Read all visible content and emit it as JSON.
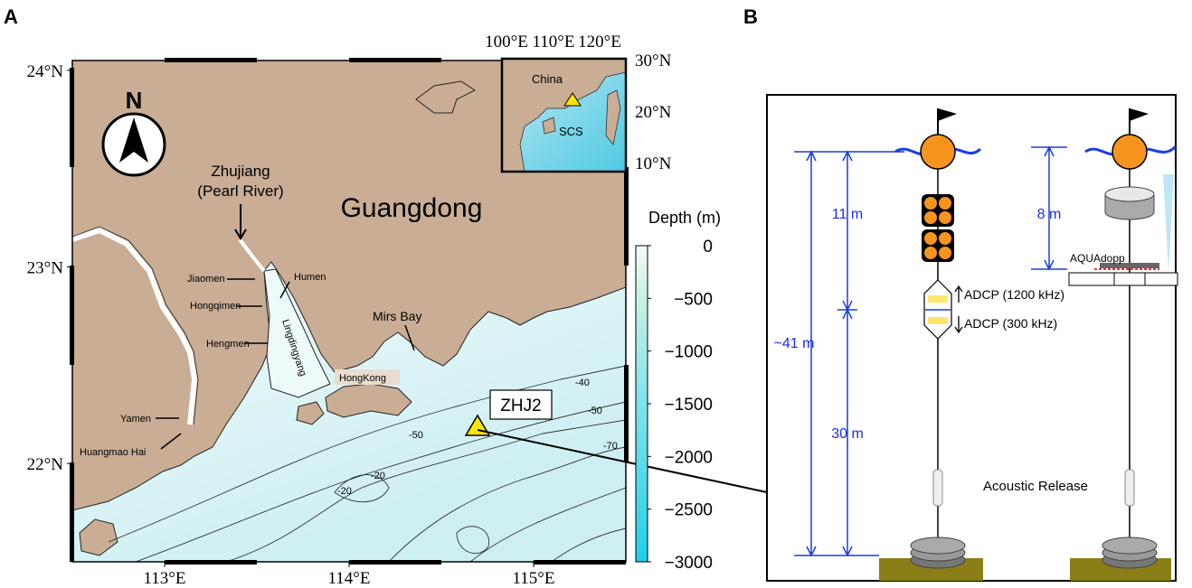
{
  "panels": {
    "a": "A",
    "b": "B"
  },
  "map": {
    "xlim": [
      112.5,
      115.5
    ],
    "ylim": [
      21.5,
      24.05
    ],
    "xticks": [
      {
        "value": 113,
        "label": "113°E"
      },
      {
        "value": 114,
        "label": "114°E"
      },
      {
        "value": 115,
        "label": "115°E"
      }
    ],
    "yticks": [
      {
        "value": 22,
        "label": "22°N"
      },
      {
        "value": 23,
        "label": "23°N"
      },
      {
        "value": 24,
        "label": "24°N"
      }
    ],
    "north": "N",
    "region": "Guangdong",
    "river": [
      "Zhujiang",
      "(Pearl River)"
    ],
    "places": [
      "Jiaomen",
      "Humen",
      "Hongqimen",
      "Hengmen",
      "Lingdingyang",
      "Mirs Bay",
      "HongKong",
      "Yamen",
      "Huangmao Hai"
    ],
    "station": "ZHJ2",
    "contour_labels": [
      "-40",
      "-50",
      "-50",
      "-70",
      "-20",
      "-20"
    ]
  },
  "inset": {
    "xticks": [
      "100°E",
      "110°E",
      "120°E"
    ],
    "yticks": [
      "30°N",
      "20°N",
      "10°N"
    ],
    "labels": [
      "China",
      "SCS"
    ]
  },
  "colorbar": {
    "title": "Depth (m)",
    "lim": [
      0,
      -3000
    ],
    "ticks": [
      0,
      {
        "value": -500,
        "label": "−500"
      },
      {
        "value": -1000,
        "label": "−1000"
      },
      {
        "value": -1500,
        "label": "−1500"
      },
      {
        "value": -2000,
        "label": "−2000"
      },
      {
        "value": -2500,
        "label": "−2500"
      },
      {
        "value": -3000,
        "label": "−3000"
      }
    ]
  },
  "mooring": {
    "upper_span": "11 m",
    "lower_span": "30 m",
    "total_span": "~41 m",
    "aquadopp_span": "8 m",
    "adcp_up": "ADCP (1200 kHz)",
    "adcp_down": "ADCP (300 kHz)",
    "aquadopp": "AQUAdopp",
    "release": "Acoustic Release"
  }
}
